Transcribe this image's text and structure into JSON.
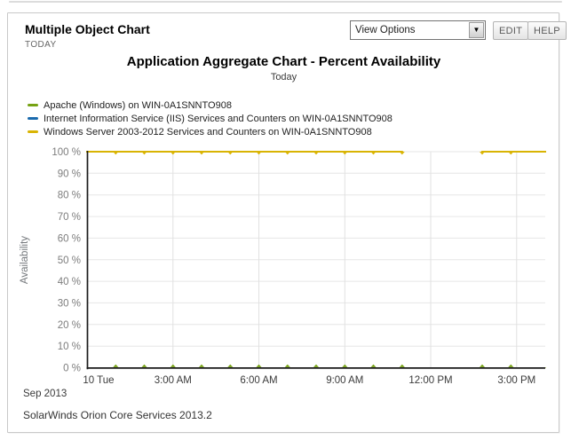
{
  "header": {
    "title": "Multiple Object Chart",
    "period_label": "TODAY"
  },
  "controls": {
    "view_options": "View Options",
    "edit": "EDIT",
    "help": "HELP"
  },
  "footer": {
    "text": "SolarWinds Orion Core Services 2013.2"
  },
  "chart_data": {
    "type": "line",
    "title": "Application Aggregate Chart - Percent Availability",
    "subtitle": "Today",
    "ylabel": "Availability",
    "ylim": [
      0,
      100
    ],
    "xlim_hours": [
      0,
      16
    ],
    "grid": true,
    "legend_position": "top-left",
    "y_ticks": [
      "100 %",
      "90 %",
      "80 %",
      "70 %",
      "60 %",
      "50 %",
      "40 %",
      "30 %",
      "20 %",
      "10 %",
      "0 %"
    ],
    "x_ticks": [
      {
        "hour": 0,
        "label": "10 Tue"
      },
      {
        "hour": 3,
        "label": "3:00 AM"
      },
      {
        "hour": 6,
        "label": "6:00 AM"
      },
      {
        "hour": 9,
        "label": "9:00 AM"
      },
      {
        "hour": 12,
        "label": "12:00 PM"
      },
      {
        "hour": 15,
        "label": "3:00 PM"
      }
    ],
    "x_context": "Sep 2013",
    "series": [
      {
        "name": "Apache (Windows) on WIN-0A1SNNTO908",
        "color": "#76a213",
        "marker": "triangle-up",
        "unit": "%",
        "points": [
          [
            0,
            0
          ],
          [
            1,
            0
          ],
          [
            2,
            0
          ],
          [
            3,
            0
          ],
          [
            4,
            0
          ],
          [
            5,
            0
          ],
          [
            6,
            0
          ],
          [
            7,
            0
          ],
          [
            8,
            0
          ],
          [
            9,
            0
          ],
          [
            10,
            0
          ],
          [
            11,
            0
          ],
          null,
          [
            13.8,
            0
          ],
          [
            14.8,
            0
          ],
          [
            16,
            0
          ]
        ]
      },
      {
        "name": "Internet Information Service (IIS) Services and Counters on WIN-0A1SNNTO908",
        "color": "#1a6aad",
        "marker": "none",
        "unit": "%",
        "points": []
      },
      {
        "name": "Windows Server 2003-2012 Services and Counters on WIN-0A1SNNTO908",
        "color": "#d9b404",
        "marker": "triangle-down",
        "unit": "%",
        "points": [
          [
            0,
            100
          ],
          [
            1,
            100
          ],
          [
            2,
            100
          ],
          [
            3,
            100
          ],
          [
            4,
            100
          ],
          [
            5,
            100
          ],
          [
            6,
            100
          ],
          [
            7,
            100
          ],
          [
            8,
            100
          ],
          [
            9,
            100
          ],
          [
            10,
            100
          ],
          [
            11,
            100
          ],
          null,
          [
            13.8,
            100
          ],
          [
            14.8,
            100
          ],
          [
            16,
            100
          ]
        ]
      }
    ]
  }
}
